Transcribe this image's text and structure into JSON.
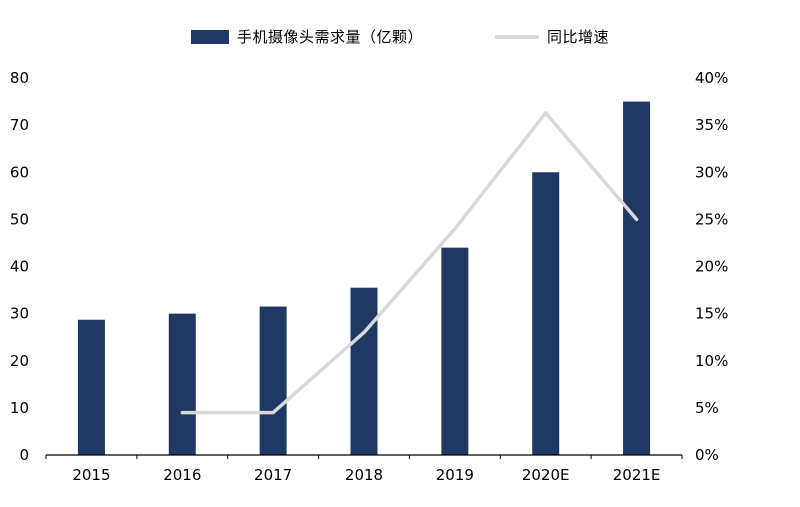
{
  "chart_data": {
    "type": "bar",
    "subtype": "bar+line combo",
    "categories": [
      "2015",
      "2016",
      "2017",
      "2018",
      "2019",
      "2020E",
      "2021E"
    ],
    "series": [
      {
        "name": "手机摄像头需求量（亿颗）",
        "type": "bar",
        "axis": "left",
        "values": [
          28.7,
          30,
          31.5,
          35.5,
          44,
          60,
          75
        ]
      },
      {
        "name": "同比增速",
        "type": "line",
        "axis": "right",
        "values": [
          null,
          4.5,
          4.5,
          13,
          24,
          36.3,
          25
        ]
      }
    ],
    "left_axis": {
      "min": 0,
      "max": 80,
      "step": 10,
      "ticks": [
        "0",
        "10",
        "20",
        "30",
        "40",
        "50",
        "60",
        "70",
        "80"
      ]
    },
    "right_axis": {
      "min": 0,
      "max": 40,
      "step": 5,
      "ticks": [
        "0%",
        "5%",
        "10%",
        "15%",
        "20%",
        "25%",
        "30%",
        "35%",
        "40%"
      ]
    },
    "title": "",
    "xlabel": "",
    "ylabel": "",
    "grid": false,
    "legend_position": "top"
  },
  "colors": {
    "bar": "#1F3864",
    "line": "#D9D9D9",
    "axis": "#000000",
    "text": "#000000",
    "background": "#FFFFFF"
  }
}
